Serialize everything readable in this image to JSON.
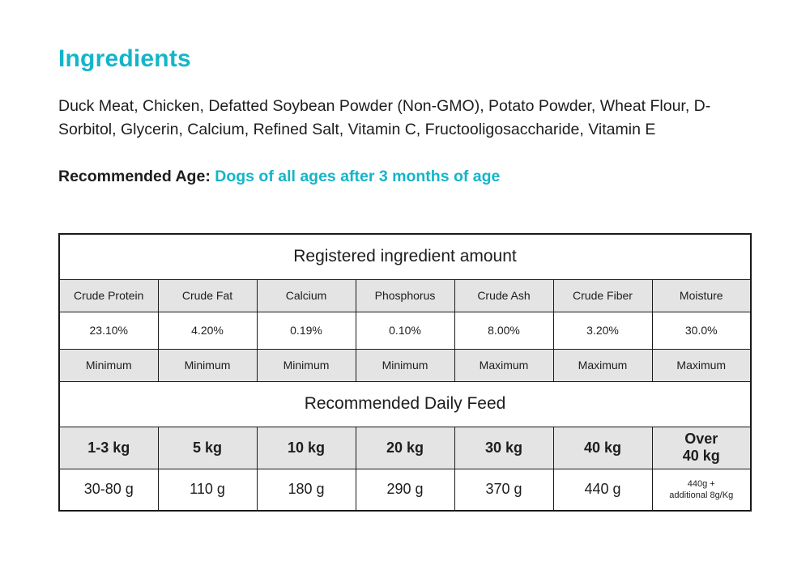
{
  "page": {
    "title": "Ingredients",
    "ingredients_text": "Duck Meat, Chicken, Defatted Soybean Powder (Non-GMO), Potato Powder, Wheat Flour, D-Sorbitol, Glycerin, Calcium, Refined Salt, Vitamin C, Fructooligosaccharide, Vitamin E",
    "recommended_age_label": "Recommended Age: ",
    "recommended_age_value": "Dogs of all ages after 3 months of age"
  },
  "colors": {
    "accent_teal": "#14b5c9",
    "cell_gray": "#e4e4e4",
    "table_border": "#1a1a1a",
    "text": "#1d1d1d"
  },
  "ingredient_table": {
    "title": "Registered ingredient amount",
    "columns": [
      "Crude Protein",
      "Crude Fat",
      "Calcium",
      "Phosphorus",
      "Crude Ash",
      "Crude Fiber",
      "Moisture"
    ],
    "values": [
      "23.10%",
      "4.20%",
      "0.19%",
      "0.10%",
      "8.00%",
      "3.20%",
      "30.0%"
    ],
    "limits": [
      "Minimum",
      "Minimum",
      "Minimum",
      "Minimum",
      "Maximum",
      "Maximum",
      "Maximum"
    ]
  },
  "feed_table": {
    "title": "Recommended Daily Feed",
    "weights": [
      "1-3 kg",
      "5 kg",
      "10 kg",
      "20 kg",
      "30 kg",
      "40 kg",
      "Over\n40 kg"
    ],
    "amounts": [
      "30-80 g",
      "110 g",
      "180 g",
      "290 g",
      "370 g",
      "440 g",
      "440g +\nadditional 8g/Kg"
    ]
  }
}
